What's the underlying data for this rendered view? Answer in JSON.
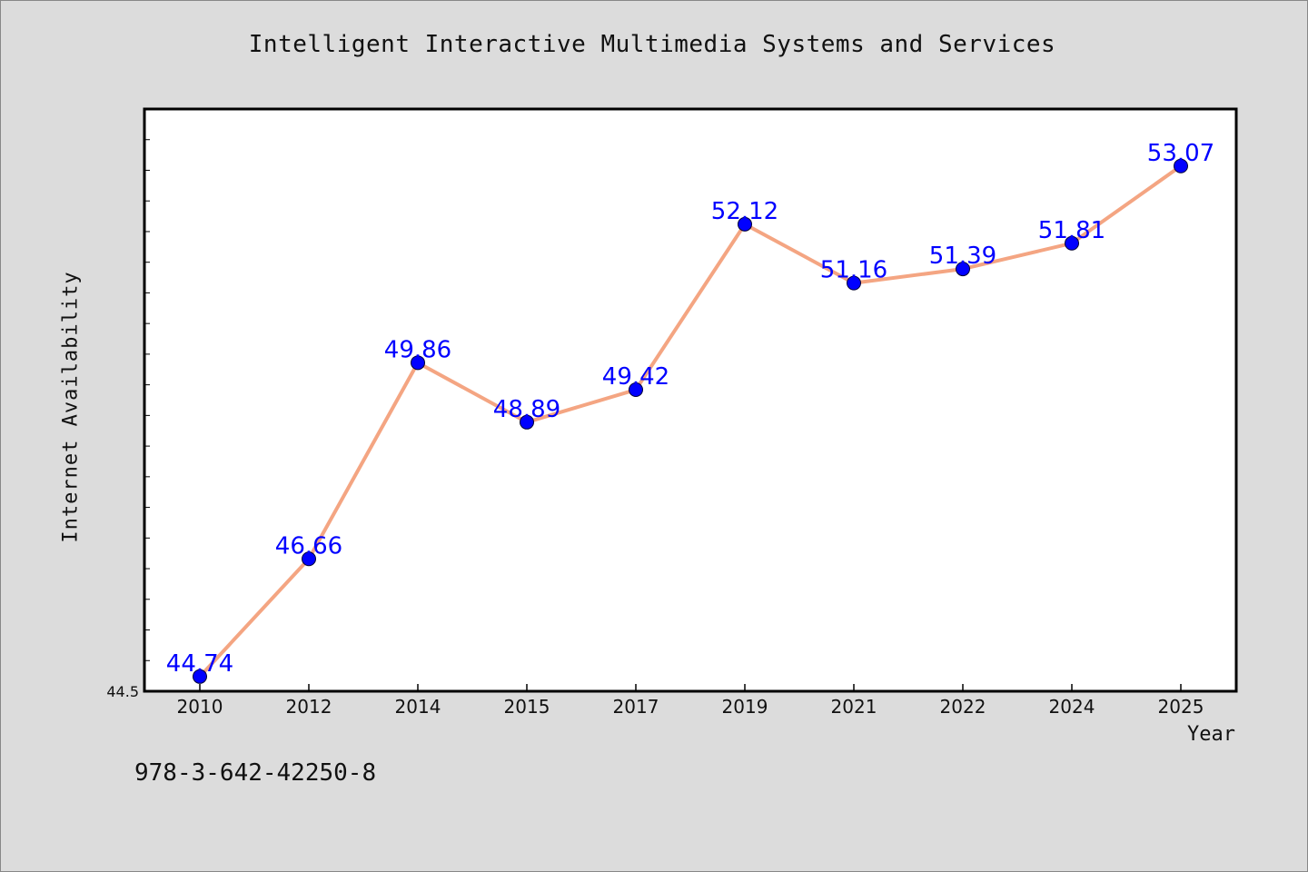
{
  "chart_data": {
    "type": "line",
    "title": "Intelligent Interactive Multimedia Systems and Services",
    "xlabel": "Year",
    "ylabel": "Internet Availability",
    "categories": [
      "2010",
      "2012",
      "2014",
      "2015",
      "2017",
      "2019",
      "2021",
      "2022",
      "2024",
      "2025"
    ],
    "series": [
      {
        "values": [
          44.74,
          46.66,
          49.86,
          48.89,
          49.42,
          52.12,
          51.16,
          51.39,
          51.81,
          53.07
        ]
      }
    ],
    "data_labels": [
      "44.74",
      "46.66",
      "49.86",
      "48.89",
      "49.42",
      "52.12",
      "51.16",
      "51.39",
      "51.81",
      "53.07"
    ],
    "ylim": [
      44.5,
      54.0
    ],
    "y_tick_labels": [
      "44.5"
    ],
    "grid": false,
    "line_color": "#f4a582",
    "marker_color": "#0000ff",
    "label_color": "#0000ff",
    "annotation": "978-3-642-42250-8"
  }
}
